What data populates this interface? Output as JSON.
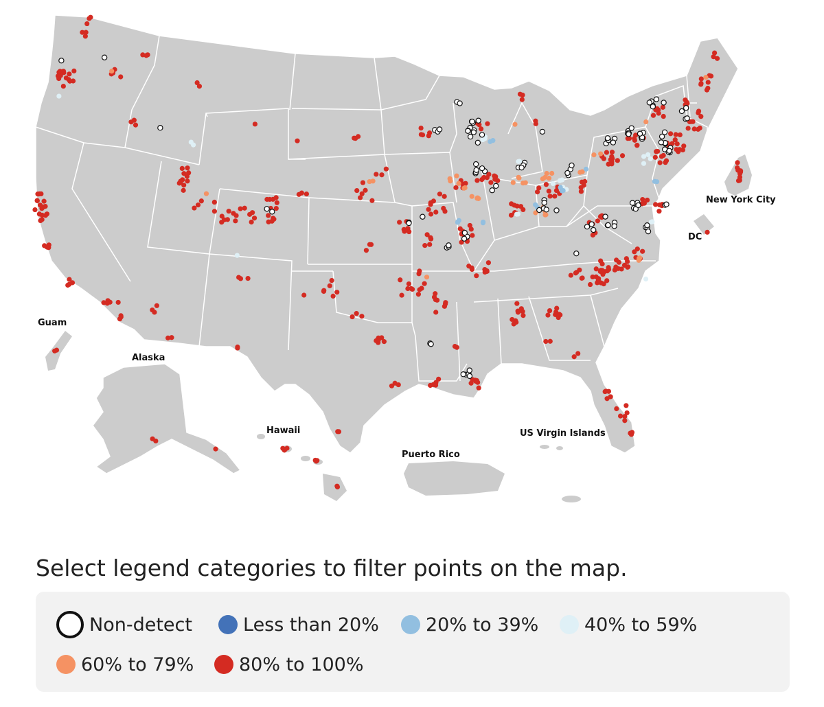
{
  "map": {
    "region_labels": {
      "guam": "Guam",
      "alaska": "Alaska",
      "hawaii": "Hawaii",
      "puerto_rico": "Puerto Rico",
      "usvi": "US Virgin Islands",
      "nyc": "New York City",
      "dc": "DC"
    },
    "colors": {
      "land": "#cccccc",
      "border": "#ffffff",
      "non_detect_fill": "#ffffff",
      "non_detect_stroke": "#111111",
      "lt20": "#4372b8",
      "p20_39": "#92bfe0",
      "p40_59": "#dff0f6",
      "p60_79": "#f59263",
      "p80_100": "#d42b22"
    }
  },
  "instructions": "Select legend categories to filter points on the map.",
  "legend": {
    "items": [
      {
        "key": "non_detect",
        "label": "Non-detect"
      },
      {
        "key": "lt20",
        "label": "Less than 20%"
      },
      {
        "key": "p20_39",
        "label": "20% to 39%"
      },
      {
        "key": "p40_59",
        "label": "40% to 59%"
      },
      {
        "key": "p60_79",
        "label": "60% to 79%"
      },
      {
        "key": "p80_100",
        "label": "80% to 100%"
      }
    ]
  }
}
